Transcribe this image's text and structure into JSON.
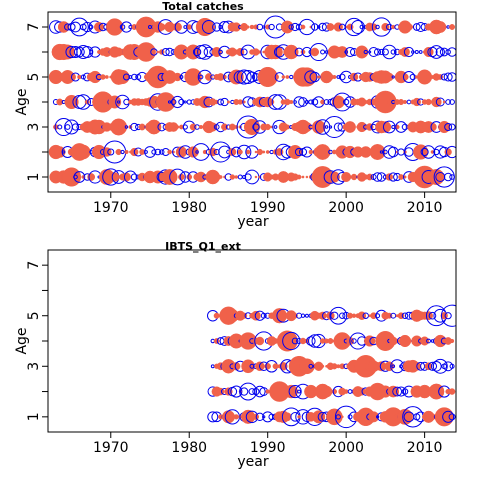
{
  "chart_data": [
    {
      "type": "scatter",
      "title": "Total catches",
      "xlabel": "year",
      "ylabel": "Age",
      "xlim": [
        1962,
        2014
      ],
      "ylim": [
        0.4,
        7.6
      ],
      "x_ticks": [
        1970,
        1980,
        1990,
        2000,
        2010
      ],
      "y_ticks": [
        1,
        2,
        3,
        4,
        5,
        6,
        7
      ],
      "y_tick_labels": [
        1,
        3,
        5,
        7
      ],
      "years": [
        1963,
        2013
      ],
      "ages": [
        1,
        2,
        3,
        4,
        5,
        6,
        7
      ],
      "encoding": "bubble area = |residual|; filled = positive, open = negative",
      "colors": {
        "positive": "#F0614A",
        "negative": "#0000EE"
      },
      "seed": 7
    },
    {
      "type": "scatter",
      "title": "IBTS_Q1_ext",
      "xlabel": "year",
      "ylabel": "Age",
      "xlim": [
        1962,
        2014
      ],
      "ylim": [
        0.4,
        7.6
      ],
      "x_ticks": [
        1970,
        1980,
        1990,
        2000,
        2010
      ],
      "y_ticks": [
        1,
        2,
        3,
        4,
        5,
        6,
        7
      ],
      "y_tick_labels": [
        1,
        3,
        5,
        7
      ],
      "years": [
        1983,
        2013
      ],
      "ages": [
        1,
        2,
        3,
        4,
        5
      ],
      "encoding": "bubble area = |residual|; filled = positive, open = negative",
      "colors": {
        "positive": "#F0614A",
        "negative": "#0000EE"
      },
      "seed": 23
    }
  ]
}
